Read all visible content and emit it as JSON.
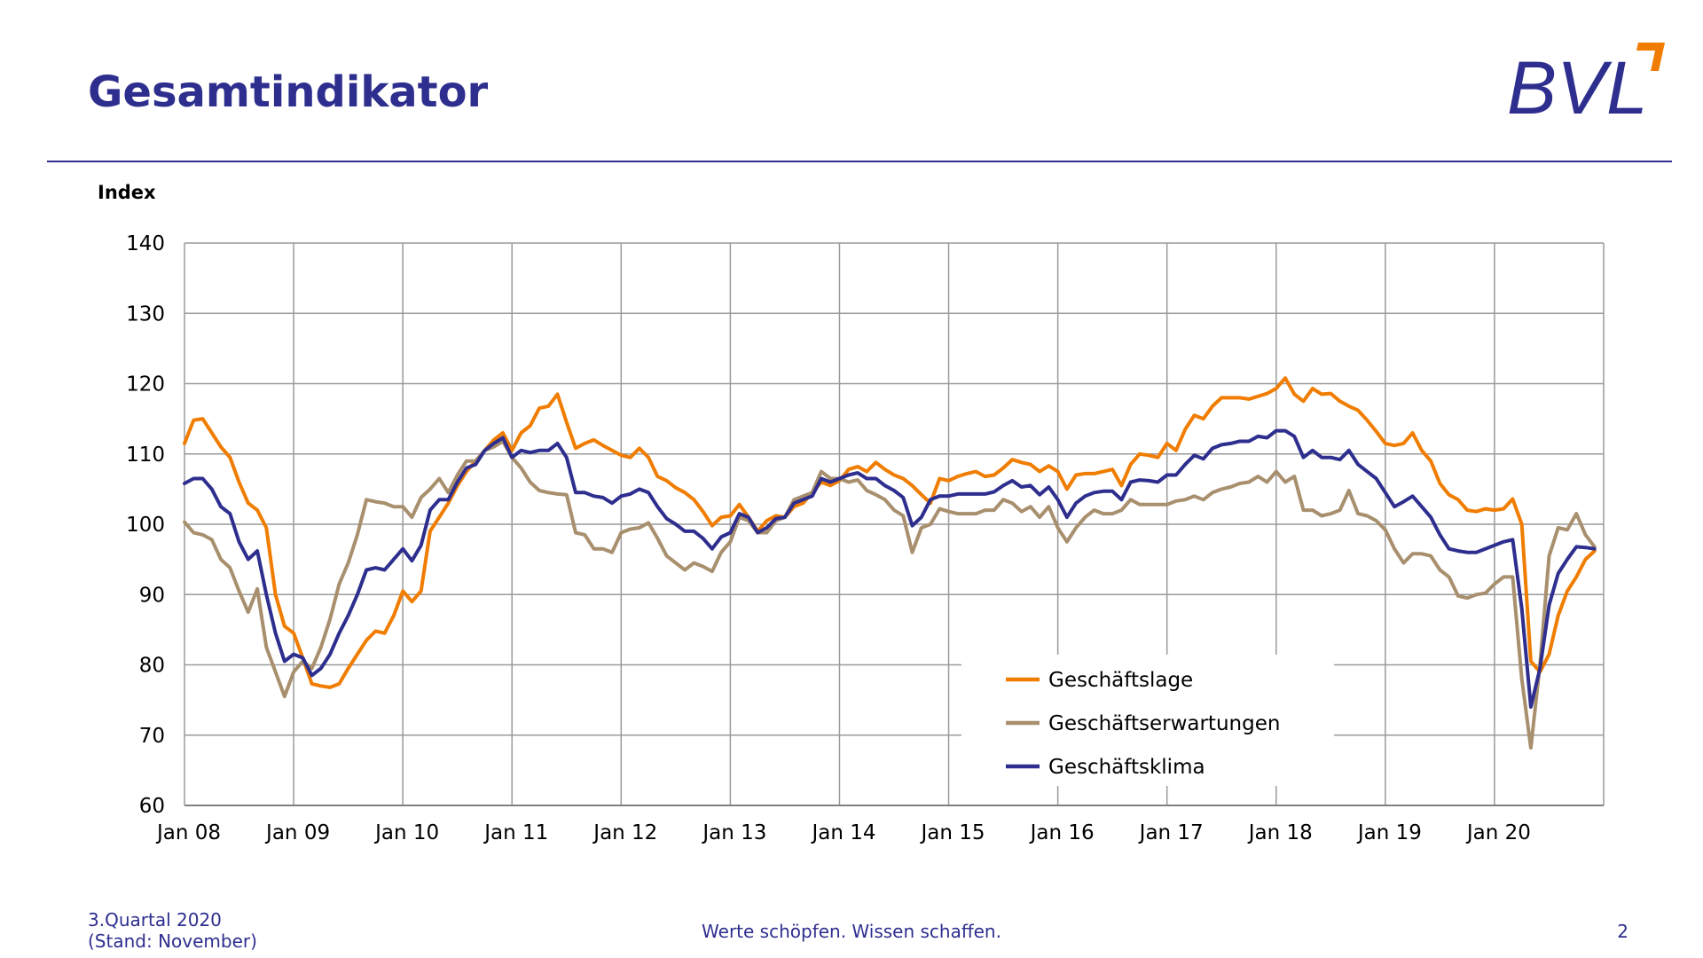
{
  "header": {
    "title": "Gesamtindikator",
    "logo_text": "BVL",
    "brand_color": "#2e2e8f",
    "accent_color": "#f07d00"
  },
  "footer": {
    "quarter": "3.Quartal 2020",
    "status": "(Stand: November)",
    "slogan": "Werte schöpfen. Wissen schaffen.",
    "page_number": "2"
  },
  "chart_data": {
    "type": "line",
    "ylabel": "Index",
    "xlabel": "",
    "ylim": [
      60,
      140
    ],
    "yticks": [
      60,
      70,
      80,
      90,
      100,
      110,
      120,
      130,
      140
    ],
    "x_tick_labels": [
      "Jan 08",
      "Jan 09",
      "Jan 10",
      "Jan 11",
      "Jan 12",
      "Jan 13",
      "Jan 14",
      "Jan 15",
      "Jan 16",
      "Jan 17",
      "Jan 18",
      "Jan 19",
      "Jan 20"
    ],
    "x_start": "2008-01",
    "x_end": "2020-11",
    "grid": true,
    "legend_position": "bottom-right",
    "series": [
      {
        "name": "Geschäftslage",
        "color": "#f07d00",
        "values": [
          111.5,
          114.8,
          115.0,
          113.0,
          111.0,
          109.5,
          106.0,
          103.0,
          102.0,
          99.5,
          90.0,
          85.5,
          84.5,
          81.0,
          77.3,
          77.0,
          76.8,
          77.3,
          79.5,
          81.5,
          83.5,
          84.8,
          84.5,
          87.0,
          90.5,
          89.0,
          90.5,
          99.0,
          101.0,
          103.0,
          105.5,
          107.5,
          109.0,
          110.5,
          112.0,
          113.0,
          110.5,
          113.0,
          114.0,
          116.5,
          116.8,
          118.5,
          114.5,
          110.8,
          111.5,
          112.0,
          111.2,
          110.5,
          109.8,
          109.5,
          110.8,
          109.5,
          106.8,
          106.2,
          105.2,
          104.5,
          103.5,
          101.8,
          99.8,
          101.0,
          101.2,
          102.8,
          101.0,
          99.0,
          100.5,
          101.2,
          101.0,
          102.5,
          103.0,
          104.5,
          106.0,
          105.5,
          106.2,
          107.8,
          108.2,
          107.5,
          108.8,
          107.8,
          107.0,
          106.5,
          105.5,
          104.2,
          103.0,
          106.5,
          106.2,
          106.8,
          107.2,
          107.5,
          106.8,
          107.0,
          108.0,
          109.2,
          108.8,
          108.5,
          107.5,
          108.3,
          107.5,
          105.0,
          107.0,
          107.2,
          107.2,
          107.5,
          107.8,
          105.5,
          108.5,
          110.0,
          109.8,
          109.5,
          111.5,
          110.5,
          113.5,
          115.5,
          115.0,
          116.8,
          118.0,
          118.0,
          118.0,
          117.8,
          118.2,
          118.6,
          119.3,
          120.8,
          118.5,
          117.5,
          119.3,
          118.5,
          118.6,
          117.5,
          116.8,
          116.2,
          114.8,
          113.2,
          111.5,
          111.2,
          111.5,
          113.0,
          110.5,
          109.0,
          105.8,
          104.2,
          103.5,
          102.0,
          101.8,
          102.2,
          102.0,
          102.2,
          103.6,
          100.0,
          80.5,
          79.0,
          81.5,
          87.0,
          90.5,
          92.5,
          95.0,
          96.2
        ]
      },
      {
        "name": "Geschäftserwartungen",
        "color": "#a88f6e",
        "values": [
          100.3,
          98.8,
          98.5,
          97.8,
          95.0,
          93.8,
          90.5,
          87.5,
          90.8,
          82.5,
          79.0,
          75.5,
          79.0,
          80.5,
          79.5,
          82.5,
          86.5,
          91.5,
          94.5,
          98.5,
          103.5,
          103.2,
          103.0,
          102.5,
          102.5,
          101.0,
          103.8,
          105.0,
          106.5,
          104.5,
          107.0,
          109.0,
          109.0,
          110.5,
          111.0,
          111.8,
          109.5,
          108.0,
          106.0,
          104.8,
          104.5,
          104.3,
          104.2,
          98.8,
          98.5,
          96.5,
          96.5,
          96.0,
          98.8,
          99.3,
          99.5,
          100.2,
          98.0,
          95.5,
          94.5,
          93.5,
          94.5,
          94.0,
          93.3,
          96.0,
          97.5,
          101.0,
          100.5,
          98.8,
          98.8,
          100.5,
          101.0,
          103.5,
          104.0,
          104.5,
          107.5,
          106.5,
          106.5,
          106.0,
          106.3,
          104.8,
          104.2,
          103.5,
          102.0,
          101.2,
          96.0,
          99.5,
          100.0,
          102.2,
          101.8,
          101.5,
          101.5,
          101.5,
          102.0,
          102.0,
          103.5,
          103.0,
          101.8,
          102.5,
          101.0,
          102.5,
          99.5,
          97.5,
          99.5,
          101.0,
          102.0,
          101.5,
          101.5,
          102.0,
          103.5,
          102.8,
          102.8,
          102.8,
          102.8,
          103.3,
          103.5,
          104.0,
          103.5,
          104.5,
          105.0,
          105.3,
          105.8,
          106.0,
          106.8,
          106.0,
          107.5,
          106.0,
          106.8,
          102.0,
          102.0,
          101.2,
          101.5,
          102.0,
          104.8,
          101.5,
          101.2,
          100.5,
          99.2,
          96.5,
          94.5,
          95.8,
          95.8,
          95.5,
          93.5,
          92.5,
          89.8,
          89.5,
          90.0,
          90.2,
          91.5,
          92.5,
          92.5,
          78.0,
          68.2,
          80.0,
          95.5,
          99.5,
          99.2,
          101.5,
          98.5,
          96.8
        ]
      },
      {
        "name": "Geschäftsklima",
        "color": "#2e2e8f",
        "values": [
          105.8,
          106.5,
          106.5,
          105.0,
          102.5,
          101.5,
          97.5,
          95.0,
          96.2,
          90.0,
          84.5,
          80.5,
          81.5,
          81.0,
          78.5,
          79.5,
          81.5,
          84.5,
          87.0,
          90.0,
          93.5,
          93.8,
          93.5,
          95.0,
          96.5,
          94.8,
          97.0,
          102.0,
          103.5,
          103.5,
          106.0,
          108.0,
          108.5,
          110.5,
          111.5,
          112.3,
          109.5,
          110.5,
          110.2,
          110.5,
          110.5,
          111.5,
          109.5,
          104.5,
          104.5,
          104.0,
          103.8,
          103.0,
          104.0,
          104.3,
          105.0,
          104.5,
          102.5,
          100.8,
          100.0,
          99.0,
          99.0,
          98.0,
          96.5,
          98.2,
          98.8,
          101.5,
          101.0,
          98.8,
          99.5,
          100.8,
          101.0,
          103.0,
          103.5,
          104.0,
          106.5,
          106.0,
          106.5,
          107.0,
          107.3,
          106.5,
          106.5,
          105.5,
          104.8,
          103.8,
          99.8,
          101.0,
          103.5,
          104.0,
          104.0,
          104.3,
          104.3,
          104.3,
          104.3,
          104.6,
          105.5,
          106.2,
          105.3,
          105.5,
          104.2,
          105.3,
          103.5,
          101.0,
          103.0,
          104.0,
          104.5,
          104.7,
          104.7,
          103.5,
          106.0,
          106.3,
          106.2,
          106.0,
          107.0,
          107.0,
          108.5,
          109.8,
          109.3,
          110.8,
          111.3,
          111.5,
          111.8,
          111.8,
          112.5,
          112.3,
          113.3,
          113.3,
          112.5,
          109.5,
          110.5,
          109.5,
          109.5,
          109.2,
          110.5,
          108.5,
          107.5,
          106.5,
          104.5,
          102.5,
          103.2,
          104.0,
          102.5,
          101.0,
          98.5,
          96.5,
          96.2,
          96.0,
          96.0,
          96.5,
          97.0,
          97.5,
          97.8,
          88.0,
          74.0,
          79.5,
          88.5,
          93.0,
          95.0,
          96.8,
          96.7,
          96.5
        ]
      }
    ]
  }
}
